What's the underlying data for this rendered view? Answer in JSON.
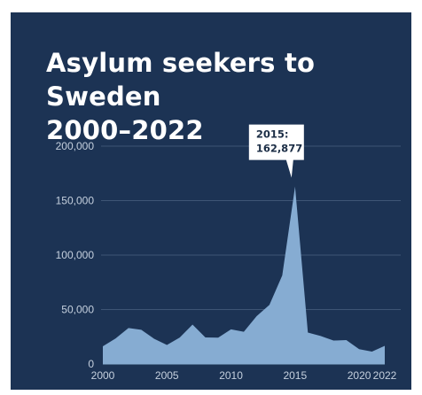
{
  "title_lines": [
    "Asylum seekers to Sweden",
    "2000–2022"
  ],
  "colors": {
    "background": "#1c3354",
    "area_fill": "#86acd2",
    "gridline": "#3e5575",
    "tick_text": "#c5d0de",
    "annotation_bg": "#ffffff",
    "annotation_text": "#1c2e46"
  },
  "chart_data": {
    "type": "area",
    "title": "Asylum seekers to Sweden 2000–2022",
    "xlabel": "",
    "ylabel": "",
    "x": [
      2000,
      2001,
      2002,
      2003,
      2004,
      2005,
      2006,
      2007,
      2008,
      2009,
      2010,
      2011,
      2012,
      2013,
      2014,
      2015,
      2016,
      2017,
      2018,
      2019,
      2020,
      2021,
      2022
    ],
    "values": [
      16300,
      23500,
      33000,
      31400,
      23200,
      17500,
      24300,
      36200,
      24400,
      24200,
      31800,
      29600,
      43900,
      54300,
      81300,
      162877,
      28900,
      25700,
      21500,
      21900,
      13600,
      11400,
      16700
    ],
    "xlim": [
      2000,
      2022
    ],
    "ylim": [
      0,
      200000
    ],
    "x_ticks": [
      2000,
      2005,
      2010,
      2015,
      2020,
      2022
    ],
    "x_tick_labels": [
      "2000",
      "2005",
      "2010",
      "2015",
      "2020",
      "2022"
    ],
    "y_ticks": [
      0,
      50000,
      100000,
      150000,
      200000
    ],
    "y_tick_labels": [
      "0",
      "50,000",
      "100,000",
      "150,000",
      "200,000"
    ],
    "grid": true,
    "legend": "none",
    "annotation": {
      "x": 2015,
      "y": 162877,
      "lines": [
        "2015:",
        "162,877"
      ]
    }
  }
}
